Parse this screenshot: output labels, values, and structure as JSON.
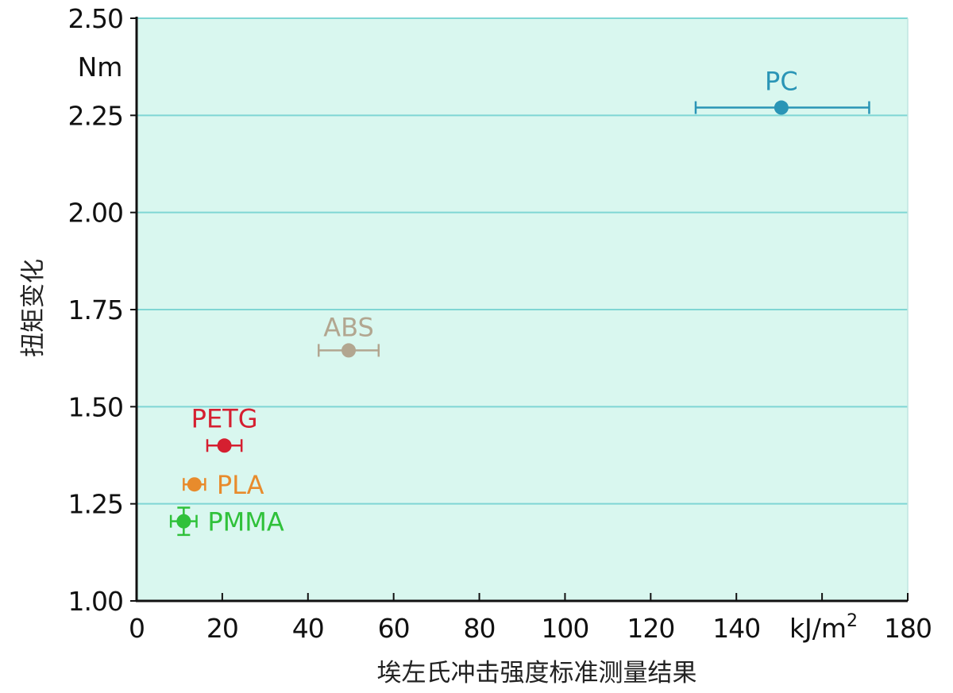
{
  "chart_data": {
    "type": "scatter",
    "title": "",
    "xlabel": "埃左氏冲击强度标准测量结果",
    "ylabel": "扭矩变化",
    "x_unit": "kJ/m",
    "x_unit_sup": "2",
    "y_unit": "Nm",
    "xlim": [
      0,
      180
    ],
    "ylim": [
      1.0,
      2.5
    ],
    "x_ticks": [
      0,
      20,
      40,
      60,
      80,
      100,
      120,
      140,
      180
    ],
    "x_tick_labels": [
      "0",
      "20",
      "40",
      "60",
      "80",
      "100",
      "120",
      "140",
      "180"
    ],
    "y_ticks": [
      1.0,
      1.25,
      1.5,
      1.75,
      2.0,
      2.25,
      2.5
    ],
    "y_tick_labels": [
      "1.00",
      "1.25",
      "1.50",
      "1.75",
      "2.00",
      "2.25",
      "2.50"
    ],
    "grid": "horizontal",
    "background_color": "#d9f7ef",
    "grid_color": "#7fd6d4",
    "points": [
      {
        "label": "PC",
        "x": 150.5,
        "y": 2.27,
        "xerr": [
          130.5,
          171.0
        ],
        "yerr": null,
        "color": "#2a95b6"
      },
      {
        "label": "ABS",
        "x": 49.5,
        "y": 1.645,
        "xerr": [
          42.5,
          56.5
        ],
        "yerr": null,
        "color": "#b2a690"
      },
      {
        "label": "PETG",
        "x": 20.5,
        "y": 1.4,
        "xerr": [
          16.5,
          24.5
        ],
        "yerr": null,
        "color": "#d51f30"
      },
      {
        "label": "PLA",
        "x": 13.5,
        "y": 1.3,
        "xerr": [
          11.0,
          16.0
        ],
        "yerr": null,
        "color": "#e88b2c"
      },
      {
        "label": "PMMA",
        "x": 11.0,
        "y": 1.205,
        "xerr": [
          8.0,
          14.0
        ],
        "yerr": [
          1.17,
          1.24
        ],
        "color": "#2fc13a"
      }
    ]
  }
}
